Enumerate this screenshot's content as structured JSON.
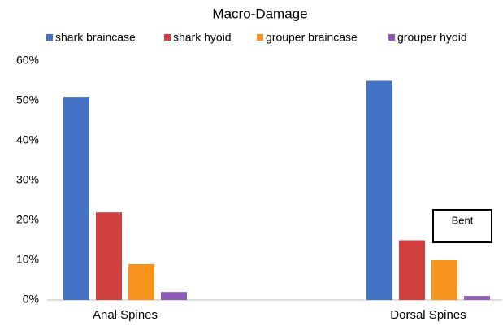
{
  "chart_data": {
    "type": "bar",
    "title": "Macro-Damage",
    "categories": [
      "Anal Spines",
      "Dorsal Spines"
    ],
    "series": [
      {
        "name": "shark braincase",
        "color": "#4472c4",
        "values": [
          51,
          55
        ]
      },
      {
        "name": "shark hyoid",
        "color": "#d0403f",
        "values": [
          22,
          15
        ]
      },
      {
        "name": "grouper braincase",
        "color": "#f7941d",
        "values": [
          9,
          10
        ]
      },
      {
        "name": "grouper hyoid",
        "color": "#8e5bb5",
        "values": [
          2,
          1
        ]
      }
    ],
    "ylim": [
      0,
      60
    ],
    "yticks": [
      {
        "value": 0,
        "label": "0%"
      },
      {
        "value": 10,
        "label": "10%"
      },
      {
        "value": 20,
        "label": "20%"
      },
      {
        "value": 30,
        "label": "30%"
      },
      {
        "value": 40,
        "label": "40%"
      },
      {
        "value": 50,
        "label": "50%"
      },
      {
        "value": 60,
        "label": "60%"
      }
    ],
    "grid": false,
    "legend": "top",
    "annotations": [
      "Bent"
    ]
  }
}
